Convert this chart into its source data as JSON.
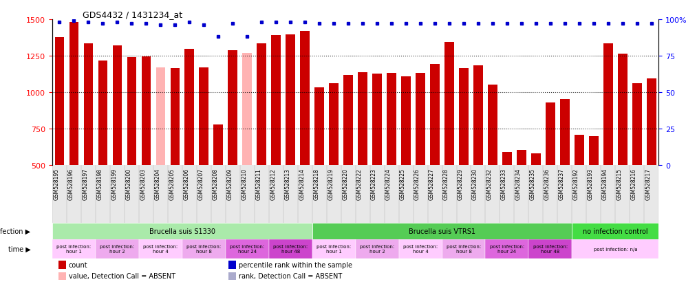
{
  "title": "GDS4432 / 1431234_at",
  "samples": [
    "GSM528195",
    "GSM528196",
    "GSM528197",
    "GSM528198",
    "GSM528199",
    "GSM528200",
    "GSM528203",
    "GSM528204",
    "GSM528205",
    "GSM528206",
    "GSM528207",
    "GSM528208",
    "GSM528209",
    "GSM528210",
    "GSM528211",
    "GSM528212",
    "GSM528213",
    "GSM528214",
    "GSM528218",
    "GSM528219",
    "GSM528220",
    "GSM528222",
    "GSM528223",
    "GSM528224",
    "GSM528225",
    "GSM528226",
    "GSM528227",
    "GSM528228",
    "GSM528229",
    "GSM528230",
    "GSM528232",
    "GSM528233",
    "GSM528234",
    "GSM528235",
    "GSM528236",
    "GSM528237",
    "GSM528192",
    "GSM528193",
    "GSM528194",
    "GSM528215",
    "GSM528216",
    "GSM528217"
  ],
  "values": [
    1375,
    1480,
    1335,
    1215,
    1320,
    1240,
    1245,
    1170,
    1165,
    1295,
    1170,
    775,
    1285,
    1270,
    1335,
    1390,
    1395,
    1420,
    1030,
    1060,
    1115,
    1135,
    1125,
    1130,
    1110,
    1130,
    1195,
    1345,
    1165,
    1185,
    1050,
    590,
    600,
    580,
    930,
    950,
    705,
    695,
    1335,
    1265,
    1060,
    1095
  ],
  "absent_mask": [
    false,
    false,
    false,
    false,
    false,
    false,
    false,
    true,
    false,
    false,
    false,
    false,
    false,
    true,
    false,
    false,
    false,
    false,
    false,
    false,
    false,
    false,
    false,
    false,
    false,
    false,
    false,
    false,
    false,
    false,
    false,
    false,
    false,
    false,
    false,
    false,
    false,
    false,
    false,
    false,
    false,
    false
  ],
  "percentile_ranks_pct": [
    98,
    99,
    98,
    97,
    98,
    97,
    97,
    96,
    96,
    98,
    96,
    88,
    97,
    88,
    98,
    98,
    98,
    98,
    97,
    97,
    97,
    97,
    97,
    97,
    97,
    97,
    97,
    97,
    97,
    97,
    97,
    97,
    97,
    97,
    97,
    97,
    97,
    97,
    97,
    97,
    97,
    97
  ],
  "absent_rank_mask": [
    false,
    false,
    false,
    false,
    false,
    false,
    false,
    false,
    false,
    false,
    false,
    false,
    false,
    false,
    false,
    false,
    false,
    false,
    false,
    false,
    false,
    false,
    false,
    false,
    false,
    false,
    false,
    false,
    false,
    false,
    false,
    false,
    false,
    false,
    false,
    false,
    false,
    false,
    false,
    false,
    false,
    false
  ],
  "bar_color_normal": "#cc0000",
  "bar_color_absent": "#ffb3b3",
  "dot_color_normal": "#0000cc",
  "dot_color_absent": "#aaaacc",
  "ylim_left": [
    500,
    1500
  ],
  "ylim_right": [
    0,
    100
  ],
  "yticks_left": [
    500,
    750,
    1000,
    1250,
    1500
  ],
  "yticks_right": [
    0,
    25,
    50,
    75,
    100
  ],
  "infection_groups": [
    {
      "label": "Brucella suis S1330",
      "start": 0,
      "end": 18,
      "color": "#aaeaaa"
    },
    {
      "label": "Brucella suis VTRS1",
      "start": 18,
      "end": 36,
      "color": "#55cc55"
    },
    {
      "label": "no infection control",
      "start": 36,
      "end": 42,
      "color": "#44dd44"
    }
  ],
  "time_groups": [
    {
      "label": "post infection:\nhour 1",
      "start": 0,
      "end": 3,
      "color": "#ffccff"
    },
    {
      "label": "post infection:\nhour 2",
      "start": 3,
      "end": 6,
      "color": "#eeaaee"
    },
    {
      "label": "post infection:\nhour 4",
      "start": 6,
      "end": 9,
      "color": "#ffccff"
    },
    {
      "label": "post infection:\nhour 8",
      "start": 9,
      "end": 12,
      "color": "#eeaaee"
    },
    {
      "label": "post infection:\nhour 24",
      "start": 12,
      "end": 15,
      "color": "#dd66dd"
    },
    {
      "label": "post infection:\nhour 48",
      "start": 15,
      "end": 18,
      "color": "#cc44cc"
    },
    {
      "label": "post infection:\nhour 1",
      "start": 18,
      "end": 21,
      "color": "#ffccff"
    },
    {
      "label": "post infection:\nhour 2",
      "start": 21,
      "end": 24,
      "color": "#eeaaee"
    },
    {
      "label": "post infection:\nhour 4",
      "start": 24,
      "end": 27,
      "color": "#ffccff"
    },
    {
      "label": "post infection:\nhour 8",
      "start": 27,
      "end": 30,
      "color": "#eeaaee"
    },
    {
      "label": "post infection:\nhour 24",
      "start": 30,
      "end": 33,
      "color": "#dd66dd"
    },
    {
      "label": "post infection:\nhour 48",
      "start": 33,
      "end": 36,
      "color": "#cc44cc"
    },
    {
      "label": "post infection: n/a",
      "start": 36,
      "end": 42,
      "color": "#ffccff"
    }
  ],
  "legend_items": [
    {
      "label": "count",
      "color": "#cc0000",
      "row": 0
    },
    {
      "label": "percentile rank within the sample",
      "color": "#0000cc",
      "row": 0
    },
    {
      "label": "value, Detection Call = ABSENT",
      "color": "#ffb3b3",
      "row": 1
    },
    {
      "label": "rank, Detection Call = ABSENT",
      "color": "#aaaacc",
      "row": 1
    }
  ]
}
